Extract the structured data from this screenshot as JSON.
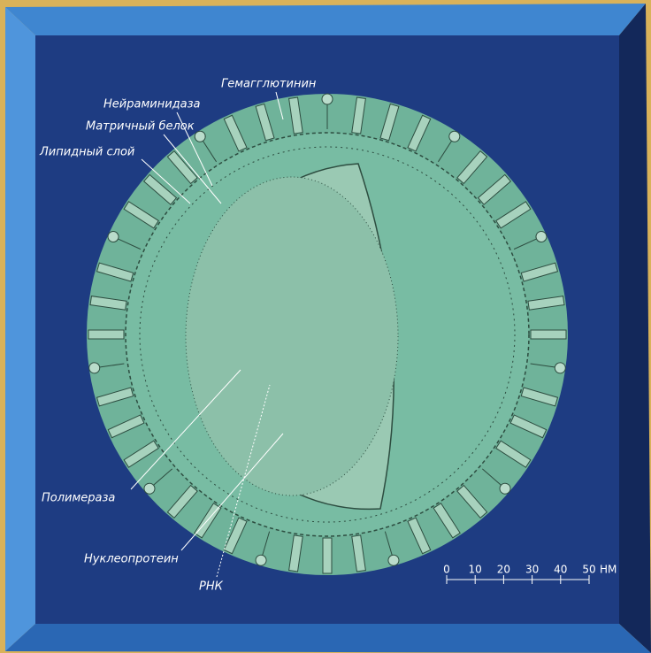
{
  "labels": [
    "Гемагглютинин",
    "Нейраминидаза",
    "Матричный белок",
    "Липидный слой",
    "Полимераза",
    "Нуклеопротеин",
    "РНК"
  ],
  "scale": {
    "ticks": [
      0,
      10,
      20,
      30,
      40,
      50
    ],
    "unit": "НМ"
  }
}
